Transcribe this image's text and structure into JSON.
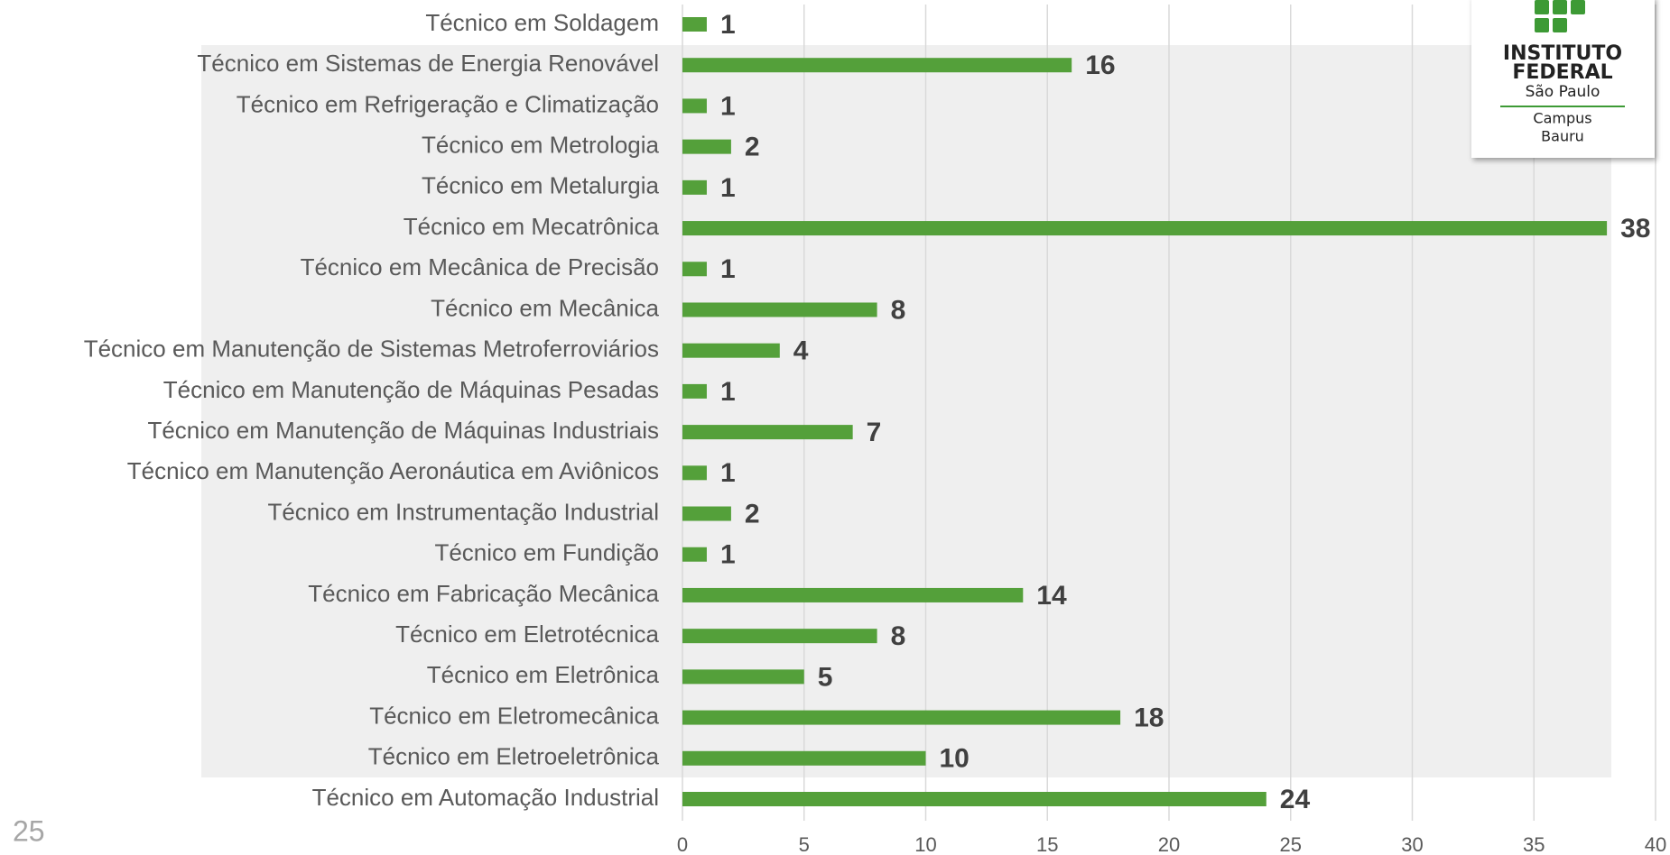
{
  "chart_data": {
    "type": "barh",
    "categories": [
      "Técnico em Soldagem",
      "Técnico em Sistemas de Energia Renovável",
      "Técnico em Refrigeração e Climatização",
      "Técnico em Metrologia",
      "Técnico em Metalurgia",
      "Técnico em Mecatrônica",
      "Técnico em Mecânica de Precisão",
      "Técnico em Mecânica",
      "Técnico em Manutenção de Sistemas Metroferroviários",
      "Técnico em Manutenção de Máquinas Pesadas",
      "Técnico em Manutenção de Máquinas Industriais",
      "Técnico em Manutenção Aeronáutica em Aviônicos",
      "Técnico em Instrumentação Industrial",
      "Técnico em Fundição",
      "Técnico em Fabricação Mecânica",
      "Técnico em Eletrotécnica",
      "Técnico em Eletrônica",
      "Técnico em Eletromecânica",
      "Técnico em Eletroeletrônica",
      "Técnico em Automação Industrial"
    ],
    "values": [
      1,
      16,
      1,
      2,
      1,
      38,
      1,
      8,
      4,
      1,
      7,
      1,
      2,
      1,
      14,
      8,
      5,
      18,
      10,
      24
    ],
    "color": "#54a03a",
    "xlim": [
      0,
      40
    ],
    "xticks": [
      0,
      5,
      10,
      15,
      20,
      25,
      30,
      35,
      40
    ],
    "grid": true
  },
  "page_number": "25",
  "logo": {
    "line1": "INSTITUTO",
    "line2": "FEDERAL",
    "line3": "São Paulo",
    "line4": "Campus",
    "line5": "Bauru"
  }
}
